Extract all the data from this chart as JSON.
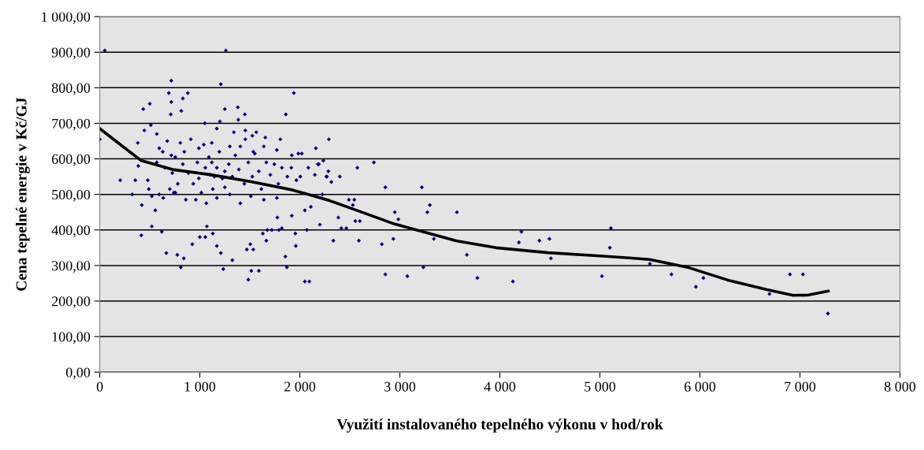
{
  "chart_data": {
    "type": "scatter",
    "xlabel": "Využití instalovaného tepelného výkonu v hod/rok",
    "ylabel": "Cena tepelné energie v Kč/GJ",
    "xlim": [
      0,
      8000
    ],
    "ylim": [
      0,
      1000
    ],
    "xticks": [
      0,
      {
        "value": 1000,
        "label": "1 000"
      },
      {
        "value": 2000,
        "label": "2 000"
      },
      {
        "value": 3000,
        "label": "3 000"
      },
      {
        "value": 4000,
        "label": "4 000"
      },
      {
        "value": 5000,
        "label": "5 000"
      },
      {
        "value": 6000,
        "label": "6 000"
      },
      {
        "value": 7000,
        "label": "7 000"
      },
      {
        "value": 8000,
        "label": "8 000"
      }
    ],
    "yticks": [
      {
        "value": 0,
        "label": "0,00"
      },
      {
        "value": 100,
        "label": "100,00"
      },
      {
        "value": 200,
        "label": "200,00"
      },
      {
        "value": 300,
        "label": "300,00"
      },
      {
        "value": 400,
        "label": "400,00"
      },
      {
        "value": 500,
        "label": "500,00"
      },
      {
        "value": 600,
        "label": "600,00"
      },
      {
        "value": 700,
        "label": "700,00"
      },
      {
        "value": 800,
        "label": "800,00"
      },
      {
        "value": 900,
        "label": "900,00"
      },
      {
        "value": 1000,
        "label": "1 000,00"
      }
    ],
    "grid": "y",
    "legend": false,
    "series": [
      {
        "color": "#000080",
        "marker": "diamond",
        "x": [
          50,
          1260,
          715,
          1210,
          690,
          880,
          1940,
          715,
          830,
          500,
          435,
          815,
          1250,
          1380,
          1450,
          1860,
          710,
          510,
          445,
          1050,
          1200,
          1385,
          1455,
          1565,
          1525,
          570,
          380,
          0,
          1805,
          2160,
          2290,
          1985,
          2020,
          1920,
          1655,
          1340,
          1170,
          205,
          325,
          355,
          420,
          490,
          555,
          520,
          415,
          620,
          665,
          775,
          810,
          840,
          925,
          1000,
          1055,
          1070,
          1130,
          1170,
          1210,
          1235,
          1325,
          1485,
          1515,
          1590,
          1470,
          1505,
          1535,
          1630,
          1665,
          1855,
          1870,
          1960,
          2050,
          2095,
          1955,
          2070,
          2200,
          2110,
          2050,
          1920,
          1820,
          1790,
          1775,
          1720,
          1675,
          385,
          480,
          570,
          630,
          650,
          715,
          725,
          780,
          755,
          830,
          845,
          885,
          935,
          975,
          990,
          1015,
          1055,
          1090,
          1105,
          1130,
          1170,
          1195,
          1225,
          1250,
          1290,
          1325,
          1355,
          1390,
          1405,
          1445,
          1485,
          1525,
          1550,
          1590,
          1615,
          1665,
          1705,
          1745,
          1785,
          1820,
          1875,
          1915,
          1965,
          2005,
          2085,
          2150,
          2190,
          2265,
          520,
          595,
          635,
          700,
          740,
          860,
          960,
          1065,
          1170,
          1300,
          1405,
          1510,
          1640,
          1770,
          805,
          910,
          1040,
          1120,
          1300,
          1455,
          1535,
          1640,
          1770,
          595,
          675,
          755,
          1120,
          1145,
          990,
          1250,
          2235,
          2180,
          2285,
          2270,
          2400,
          2315,
          2575,
          2740,
          2855,
          3220,
          2225,
          2490,
          2545,
          2530,
          3300,
          3275,
          3570,
          2950,
          2985,
          2385,
          2555,
          2600,
          2415,
          2465,
          2335,
          2590,
          2820,
          2935,
          3340,
          3670,
          3235,
          2855,
          3075,
          3775,
          4130,
          4215,
          4190,
          4395,
          4495,
          4510,
          5020,
          5100,
          5110,
          5500,
          5715,
          5960,
          6035,
          6695,
          6900,
          7030,
          7280
        ],
        "values": [
          905,
          905,
          820,
          810,
          785,
          785,
          785,
          760,
          770,
          755,
          740,
          735,
          740,
          745,
          725,
          725,
          725,
          695,
          680,
          700,
          705,
          710,
          680,
          675,
          665,
          670,
          645,
          655,
          655,
          630,
          655,
          615,
          615,
          610,
          660,
          675,
          685,
          540,
          500,
          540,
          470,
          515,
          455,
          410,
          385,
          395,
          335,
          330,
          295,
          320,
          360,
          380,
          380,
          410,
          390,
          355,
          335,
          290,
          315,
          260,
          285,
          285,
          345,
          360,
          345,
          390,
          370,
          325,
          295,
          355,
          255,
          255,
          390,
          400,
          415,
          465,
          455,
          440,
          405,
          400,
          435,
          400,
          400,
          580,
          540,
          590,
          620,
          575,
          610,
          560,
          530,
          505,
          585,
          620,
          560,
          530,
          590,
          630,
          505,
          575,
          605,
          555,
          515,
          575,
          620,
          545,
          520,
          585,
          550,
          610,
          570,
          635,
          530,
          590,
          550,
          615,
          565,
          515,
          590,
          555,
          585,
          530,
          575,
          550,
          575,
          540,
          550,
          575,
          555,
          585,
          550,
          495,
          500,
          490,
          515,
          505,
          485,
          485,
          475,
          490,
          500,
          475,
          495,
          485,
          490,
          645,
          655,
          640,
          645,
          635,
          655,
          620,
          635,
          625,
          630,
          650,
          605,
          590,
          550,
          545,
          565,
          595,
          585,
          565,
          550,
          550,
          535,
          575,
          590,
          520,
          520,
          500,
          485,
          485,
          470,
          470,
          450,
          450,
          450,
          430,
          435,
          425,
          425,
          405,
          405,
          370,
          370,
          360,
          375,
          375,
          330,
          295,
          275,
          270,
          265,
          255,
          395,
          365,
          370,
          375,
          320,
          270,
          350,
          405,
          305,
          275,
          240,
          265,
          220,
          275,
          275,
          165
        ]
      },
      {
        "type": "line",
        "color": "#000000",
        "marker": "none",
        "line_style": "solid",
        "x": [
          0,
          206,
          415,
          727,
          1118,
          1510,
          1901,
          2135,
          2292,
          2591,
          2943,
          3230,
          3569,
          3960,
          4481,
          5003,
          5263,
          5497,
          5888,
          6279,
          6670,
          6931,
          7087,
          7283
        ],
        "values": [
          685,
          640,
          595,
          570,
          555,
          536,
          514,
          496,
          483,
          453,
          417,
          395,
          369,
          350,
          336,
          327,
          322,
          317,
          294,
          259,
          232,
          216,
          217,
          228
        ]
      }
    ]
  }
}
